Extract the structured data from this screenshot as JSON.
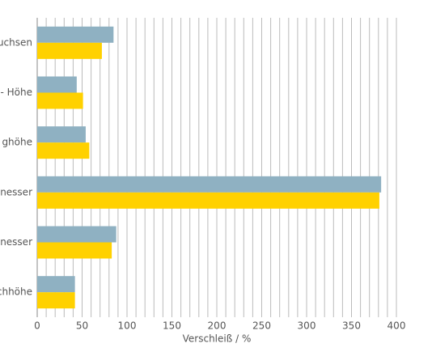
{
  "chart_data": {
    "type": "barh",
    "xlabel": "Verschleiß / %",
    "categories": [
      "uchsen",
      "- Höhe",
      "ghöhe",
      "nesser",
      "nesser",
      "chhöhe"
    ],
    "series": [
      {
        "color": "#8fb1c2",
        "values": [
          85,
          44,
          54,
          383,
          88,
          42
        ]
      },
      {
        "color": "#ffd100",
        "values": [
          72,
          51,
          58,
          381,
          83,
          42
        ]
      }
    ],
    "xlim": [
      0,
      400
    ],
    "xticks": [
      0,
      50,
      100,
      150,
      200,
      250,
      300,
      350,
      400
    ],
    "x_minor_ticks": [
      10,
      20,
      30,
      40,
      60,
      70,
      80,
      90,
      110,
      120,
      130,
      140,
      160,
      170,
      180,
      190,
      210,
      220,
      230,
      240,
      260,
      270,
      280,
      290,
      310,
      320,
      330,
      340,
      360,
      370,
      380,
      390
    ],
    "grid": true
  }
}
